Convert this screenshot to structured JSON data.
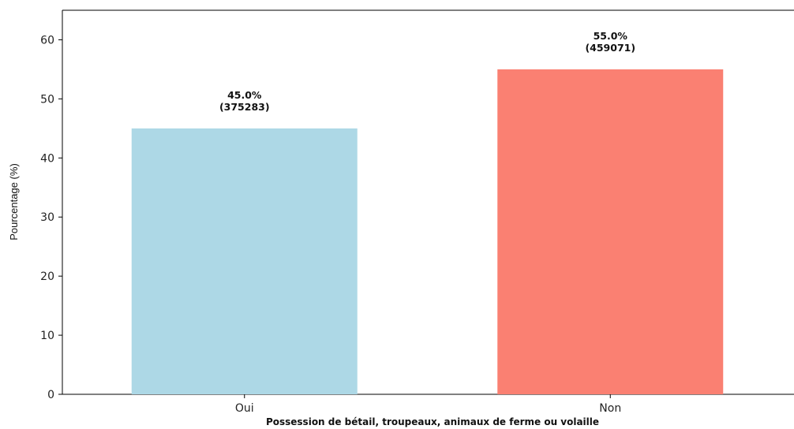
{
  "chart_data": {
    "type": "bar",
    "title": "",
    "xlabel": "Possession de bétail, troupeaux, animaux de ferme ou volaille",
    "ylabel": "Pourcentage (%)",
    "categories": [
      "Oui",
      "Non"
    ],
    "values": [
      45.0,
      55.0
    ],
    "data_labels": [
      {
        "percent": "45.0%",
        "count": "(375283)"
      },
      {
        "percent": "55.0%",
        "count": "(459071)"
      }
    ],
    "colors": [
      "#add8e6",
      "#fa8072"
    ],
    "ylim": [
      0,
      65
    ],
    "yticks": [
      0,
      10,
      20,
      30,
      40,
      50,
      60
    ],
    "grid": false,
    "legend": "none"
  }
}
